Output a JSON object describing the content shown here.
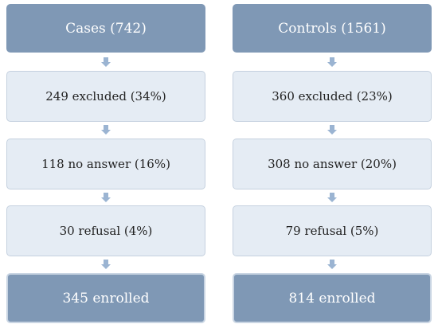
{
  "columns": [
    {
      "header": "Cases (742)",
      "steps": [
        "249 excluded (34%)",
        "118 no answer (16%)",
        "30 refusal (4%)"
      ],
      "result": "345 enrolled"
    },
    {
      "header": "Controls (1561)",
      "steps": [
        "360 excluded (23%)",
        "308 no answer (20%)",
        "79 refusal (5%)"
      ],
      "result": "814 enrolled"
    }
  ],
  "colors": {
    "dark_box": "#7f98b5",
    "light_box": "#e5ecf4",
    "arrow": "#9bb4d2"
  }
}
